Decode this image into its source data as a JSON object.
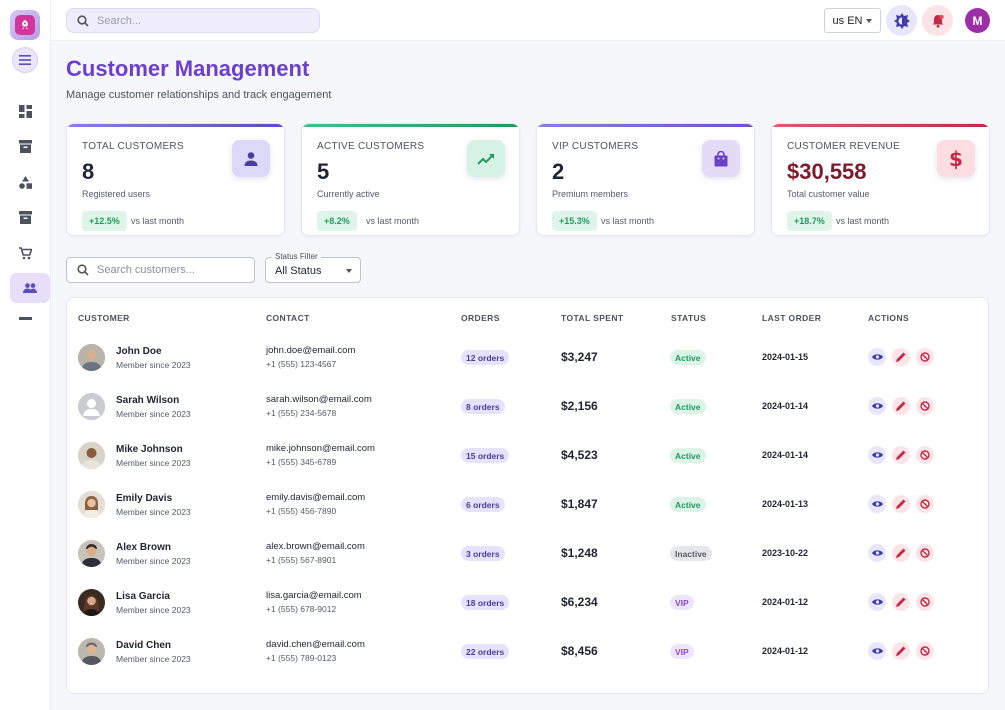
{
  "header": {
    "search_placeholder": "Search...",
    "language": "us EN"
  },
  "user": {
    "initial": "M"
  },
  "page": {
    "title": "Customer Management",
    "subtitle": "Manage customer relationships and track engagement"
  },
  "stats": [
    {
      "label": "TOTAL CUSTOMERS",
      "value": "8",
      "desc": "Registered users",
      "change": "+12.5%",
      "vs": "vs last month",
      "accent": "#7b6fd6",
      "icon": "person-icon"
    },
    {
      "label": "ACTIVE CUSTOMERS",
      "value": "5",
      "desc": "Currently active",
      "change": "+8.2%",
      "vs": "vs last month",
      "accent": "#2fb37a",
      "icon": "trending-up-icon"
    },
    {
      "label": "VIP CUSTOMERS",
      "value": "2",
      "desc": "Premium members",
      "change": "+15.3%",
      "vs": "vs last month",
      "accent": "#8a6fe0",
      "icon": "shopping-bag-icon"
    },
    {
      "label": "CUSTOMER REVENUE",
      "value": "$30,558",
      "desc": "Total customer value",
      "change": "+18.7%",
      "vs": "vs last month",
      "accent": "#d2334f",
      "icon": "dollar-icon"
    }
  ],
  "filters": {
    "search_placeholder": "Search customers...",
    "status_label": "Status Filter",
    "status_value": "All Status"
  },
  "table": {
    "headers": [
      "CUSTOMER",
      "CONTACT",
      "ORDERS",
      "TOTAL SPENT",
      "STATUS",
      "LAST ORDER",
      "ACTIONS"
    ],
    "rows": [
      {
        "name": "John Doe",
        "since": "Member since 2023",
        "email": "john.doe@email.com",
        "phone": "+1 (555) 123-4567",
        "orders": "12 orders",
        "spent": "$3,247",
        "status": "Active",
        "last": "2024-01-15"
      },
      {
        "name": "Sarah Wilson",
        "since": "Member since 2023",
        "email": "sarah.wilson@email.com",
        "phone": "+1 (555) 234-5678",
        "orders": "8 orders",
        "spent": "$2,156",
        "status": "Active",
        "last": "2024-01-14"
      },
      {
        "name": "Mike Johnson",
        "since": "Member since 2023",
        "email": "mike.johnson@email.com",
        "phone": "+1 (555) 345-6789",
        "orders": "15 orders",
        "spent": "$4,523",
        "status": "Active",
        "last": "2024-01-14"
      },
      {
        "name": "Emily Davis",
        "since": "Member since 2023",
        "email": "emily.davis@email.com",
        "phone": "+1 (555) 456-7890",
        "orders": "6 orders",
        "spent": "$1,847",
        "status": "Active",
        "last": "2024-01-13"
      },
      {
        "name": "Alex Brown",
        "since": "Member since 2023",
        "email": "alex.brown@email.com",
        "phone": "+1 (555) 567-8901",
        "orders": "3 orders",
        "spent": "$1,248",
        "status": "Inactive",
        "last": "2023-10-22"
      },
      {
        "name": "Lisa Garcia",
        "since": "Member since 2023",
        "email": "lisa.garcia@email.com",
        "phone": "+1 (555) 678-9012",
        "orders": "18 orders",
        "spent": "$6,234",
        "status": "VIP",
        "last": "2024-01-12"
      },
      {
        "name": "David Chen",
        "since": "Member since 2023",
        "email": "david.chen@email.com",
        "phone": "+1 (555) 789-0123",
        "orders": "22 orders",
        "spent": "$8,456",
        "status": "VIP",
        "last": "2024-01-12"
      }
    ]
  }
}
